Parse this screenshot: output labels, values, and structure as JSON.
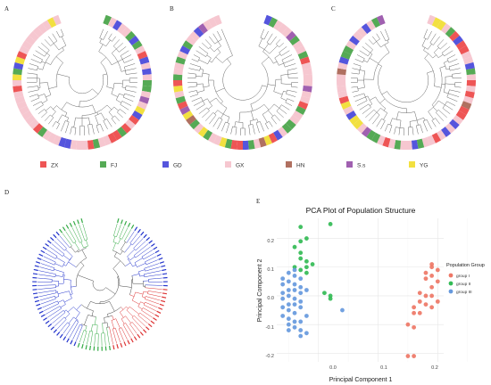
{
  "panels": {
    "a": "A",
    "b": "B",
    "c": "C",
    "d": "D",
    "e": "E"
  },
  "legend": {
    "items": [
      {
        "label": "ZX",
        "color": "#ee5555"
      },
      {
        "label": "FJ",
        "color": "#55aa55"
      },
      {
        "label": "GD",
        "color": "#5555dd"
      },
      {
        "label": "GX",
        "color": "#f6c7d0"
      },
      {
        "label": "HN",
        "color": "#b07060"
      },
      {
        "label": "S.s",
        "color": "#a060b0"
      },
      {
        "label": "YG",
        "color": "#f2e040"
      }
    ]
  },
  "pca": {
    "title": "PCA Plot of Population Structure",
    "xlabel": "Principal Component 1",
    "ylabel": "Principal Component 2",
    "legend_title": "Population Group",
    "x_ticks": [
      "0.0",
      "0.1",
      "0.2"
    ],
    "y_ticks": [
      "0.2",
      "0.1",
      "0.0",
      "-0.1",
      "-0.2"
    ]
  },
  "chart_data": {
    "type": "scatter",
    "title": "PCA Plot of Population Structure",
    "xlabel": "Principal Component 1",
    "ylabel": "Principal Component 2",
    "xlim": [
      -0.07,
      0.21
    ],
    "ylim": [
      -0.23,
      0.27
    ],
    "legend_position": "right",
    "grid": true,
    "series": [
      {
        "name": "group I",
        "color": "#ee7766",
        "points": [
          [
            0.19,
            0.11
          ],
          [
            0.19,
            0.1
          ],
          [
            0.2,
            0.09
          ],
          [
            0.18,
            0.08
          ],
          [
            0.19,
            0.07
          ],
          [
            0.18,
            0.06
          ],
          [
            0.2,
            0.05
          ],
          [
            0.19,
            0.03
          ],
          [
            0.17,
            0.01
          ],
          [
            0.18,
            0.0
          ],
          [
            0.19,
            0.0
          ],
          [
            0.17,
            -0.02
          ],
          [
            0.18,
            -0.03
          ],
          [
            0.19,
            -0.04
          ],
          [
            0.16,
            -0.06
          ],
          [
            0.17,
            -0.06
          ],
          [
            0.15,
            -0.1
          ],
          [
            0.16,
            -0.11
          ],
          [
            0.16,
            -0.21
          ],
          [
            0.15,
            -0.21
          ],
          [
            0.2,
            -0.02
          ],
          [
            0.16,
            -0.04
          ]
        ]
      },
      {
        "name": "group II",
        "color": "#33bb55",
        "points": [
          [
            0.02,
            0.25
          ],
          [
            -0.03,
            0.24
          ],
          [
            -0.02,
            0.2
          ],
          [
            -0.03,
            0.19
          ],
          [
            -0.04,
            0.17
          ],
          [
            -0.03,
            0.15
          ],
          [
            -0.02,
            0.12
          ],
          [
            -0.01,
            0.11
          ],
          [
            -0.02,
            0.1
          ],
          [
            -0.03,
            0.09
          ],
          [
            -0.04,
            0.1
          ],
          [
            -0.02,
            0.08
          ],
          [
            0.02,
            0.0
          ],
          [
            0.01,
            0.01
          ],
          [
            0.02,
            -0.01
          ],
          [
            -0.03,
            0.13
          ]
        ]
      },
      {
        "name": "group III",
        "color": "#6699dd",
        "points": [
          [
            -0.04,
            0.09
          ],
          [
            -0.05,
            0.08
          ],
          [
            -0.04,
            0.07
          ],
          [
            -0.03,
            0.06
          ],
          [
            -0.05,
            0.05
          ],
          [
            -0.04,
            0.04
          ],
          [
            -0.06,
            0.04
          ],
          [
            -0.03,
            0.03
          ],
          [
            -0.05,
            0.02
          ],
          [
            -0.04,
            0.02
          ],
          [
            -0.06,
            0.01
          ],
          [
            -0.03,
            0.01
          ],
          [
            -0.05,
            0.0
          ],
          [
            -0.04,
            -0.01
          ],
          [
            -0.06,
            -0.01
          ],
          [
            -0.03,
            -0.02
          ],
          [
            -0.05,
            -0.03
          ],
          [
            -0.04,
            -0.03
          ],
          [
            -0.06,
            -0.04
          ],
          [
            -0.03,
            -0.04
          ],
          [
            -0.05,
            -0.05
          ],
          [
            -0.04,
            -0.06
          ],
          [
            -0.06,
            -0.07
          ],
          [
            -0.05,
            -0.08
          ],
          [
            -0.04,
            -0.09
          ],
          [
            -0.05,
            -0.1
          ],
          [
            -0.04,
            -0.11
          ],
          [
            -0.03,
            -0.12
          ],
          [
            -0.02,
            -0.13
          ],
          [
            -0.03,
            -0.14
          ],
          [
            0.04,
            -0.05
          ],
          [
            -0.02,
            0.02
          ],
          [
            -0.02,
            -0.07
          ],
          [
            -0.06,
            0.06
          ],
          [
            -0.03,
            -0.09
          ],
          [
            -0.05,
            -0.12
          ]
        ]
      }
    ]
  }
}
